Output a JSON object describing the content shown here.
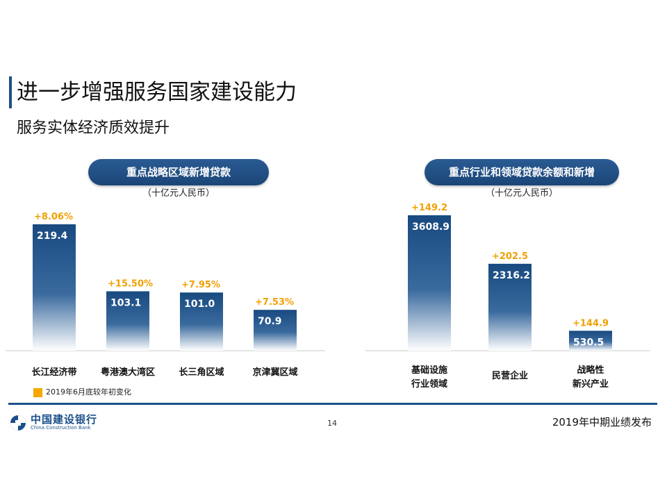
{
  "header": {
    "title": "进一步增强服务国家建设能力",
    "subtitle": "服务实体经济质效提升"
  },
  "colors": {
    "accent": "#1b4f8a",
    "bar_top": "#184a80",
    "bar_bottom": "#ffffff",
    "change_label": "#f0a000"
  },
  "chart_data": [
    {
      "type": "bar",
      "title": "重点战略区域新增贷款",
      "unit": "（十亿元人民币）",
      "categories": [
        "长江经济带",
        "粤港澳大湾区",
        "长三角区域",
        "京津冀区域"
      ],
      "values": [
        219.4,
        103.1,
        101.0,
        70.9
      ],
      "value_labels": [
        "219.4",
        "103.1",
        "101.0",
        "70.9"
      ],
      "change_labels": [
        "+8.06%",
        "+15.50%",
        "+7.95%",
        "+7.53%"
      ],
      "ylim": [
        0,
        219.4
      ],
      "grid": false
    },
    {
      "type": "bar",
      "title": "重点行业和领域贷款余额和新增",
      "unit": "（十亿元人民币）",
      "categories": [
        [
          "基础设施",
          "行业领域"
        ],
        [
          "民营企业"
        ],
        [
          "战略性",
          "新兴产业"
        ]
      ],
      "values": [
        3608.9,
        2316.2,
        530.5
      ],
      "value_labels": [
        "3608.9",
        "2316.2",
        "530.5"
      ],
      "change_labels": [
        "+149.2",
        "+202.5",
        "+144.9"
      ],
      "grid": false
    }
  ],
  "legend": {
    "label": "2019年6月底较年初变化",
    "position": "bottom-left"
  },
  "footer": {
    "logo_cn": "中国建设银行",
    "logo_en": "China Construction Bank",
    "page_number": "14",
    "event": "2019年中期业绩发布"
  },
  "icons": [
    "ccb-logo-icon"
  ]
}
